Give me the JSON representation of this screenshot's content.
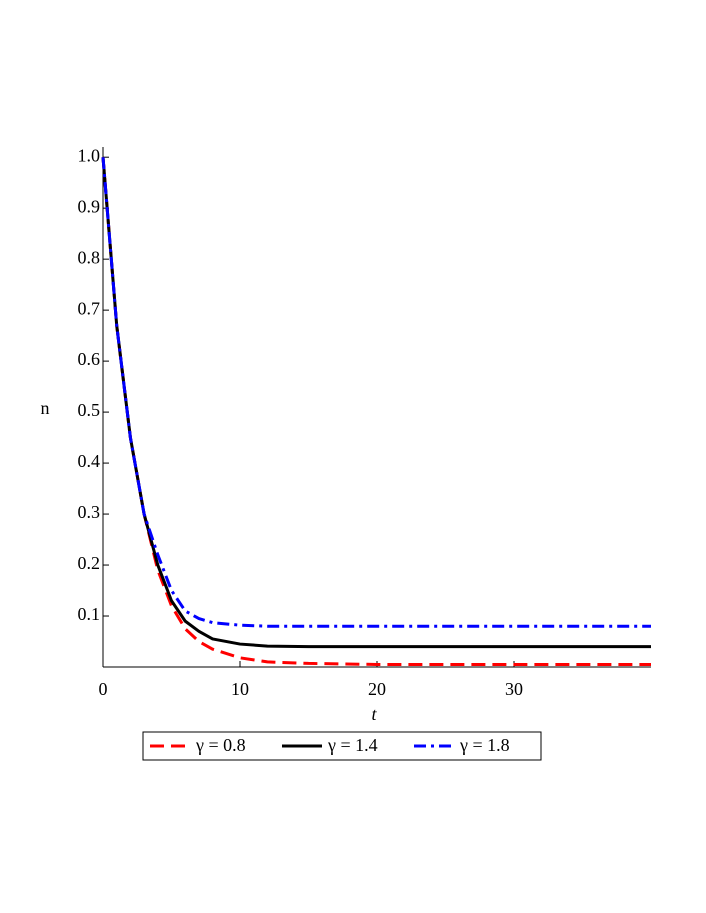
{
  "chart_data": {
    "type": "line",
    "x_label": "t",
    "y_label": "n",
    "x": [
      0,
      1,
      2,
      3,
      4,
      5,
      6,
      7,
      8,
      10,
      12,
      15,
      20,
      25,
      30,
      35,
      40
    ],
    "series": [
      {
        "name": "γ = 0.8",
        "color": "#ff0000",
        "dash": "dashed",
        "values": [
          1.0,
          0.67,
          0.45,
          0.3,
          0.19,
          0.12,
          0.075,
          0.05,
          0.035,
          0.018,
          0.01,
          0.007,
          0.005,
          0.005,
          0.005,
          0.005,
          0.005
        ]
      },
      {
        "name": "γ = 1.4",
        "color": "#000000",
        "dash": "solid",
        "values": [
          1.0,
          0.67,
          0.45,
          0.3,
          0.2,
          0.13,
          0.09,
          0.07,
          0.055,
          0.045,
          0.041,
          0.04,
          0.04,
          0.04,
          0.04,
          0.04,
          0.04
        ]
      },
      {
        "name": "γ = 1.8",
        "color": "#0000ff",
        "dash": "dashdot",
        "values": [
          1.0,
          0.67,
          0.45,
          0.3,
          0.22,
          0.15,
          0.11,
          0.095,
          0.087,
          0.082,
          0.08,
          0.08,
          0.08,
          0.08,
          0.08,
          0.08,
          0.08
        ]
      }
    ],
    "xlim": [
      0,
      40
    ],
    "xticks": [
      0,
      10,
      20,
      30
    ],
    "ylim": [
      0,
      1.02
    ],
    "yticks": [
      0.1,
      0.2,
      0.3,
      0.4,
      0.5,
      0.6,
      0.7,
      0.8,
      0.9,
      {
        "value": 1,
        "label": "1.0"
      }
    ],
    "grid": false,
    "legend": "bottom"
  }
}
